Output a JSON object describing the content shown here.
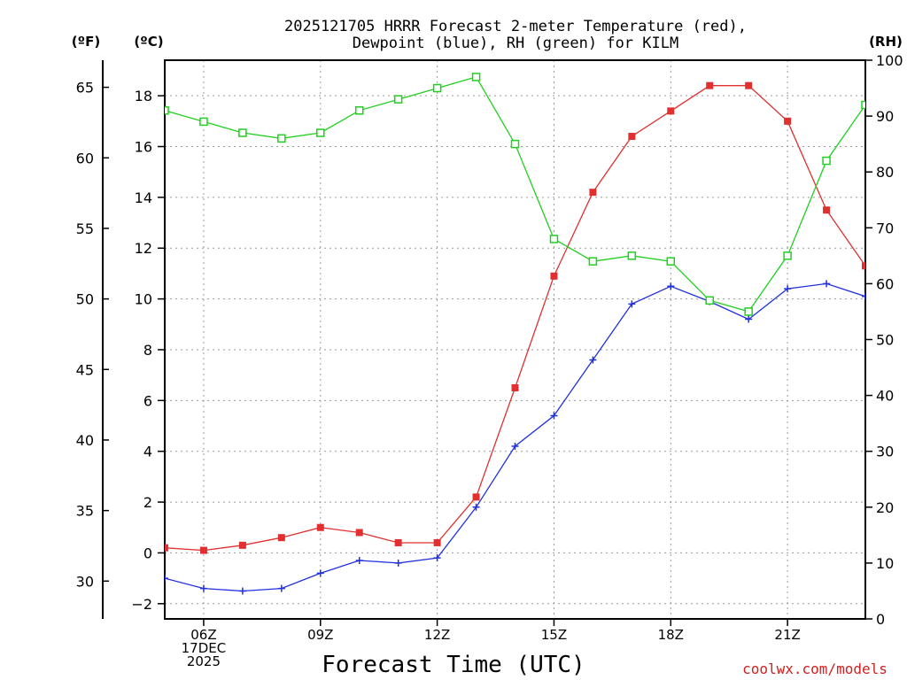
{
  "chart_data": {
    "type": "line",
    "title": [
      "2025121705 HRRR Forecast 2-meter Temperature (red),",
      "Dewpoint (blue), RH (green) for KILM"
    ],
    "xlabel": "Forecast Time (UTC)",
    "credit": "coolwx.com/models",
    "units": {
      "fahrenheit": "(ºF)",
      "celsius": "(ºC)",
      "rh": "(RH)"
    },
    "x_hours": [
      5,
      6,
      7,
      8,
      9,
      10,
      11,
      12,
      13,
      14,
      15,
      16,
      17,
      18,
      19,
      20,
      21,
      22,
      23
    ],
    "x_range": [
      5,
      23
    ],
    "x_ticks": [
      {
        "hour": 6,
        "lines": [
          "06Z",
          "17DEC",
          "2025"
        ]
      },
      {
        "hour": 9,
        "lines": [
          "09Z"
        ]
      },
      {
        "hour": 12,
        "lines": [
          "12Z"
        ]
      },
      {
        "hour": 15,
        "lines": [
          "15Z"
        ]
      },
      {
        "hour": 18,
        "lines": [
          "18Z"
        ]
      },
      {
        "hour": 21,
        "lines": [
          "21Z"
        ]
      }
    ],
    "celsius_axis": {
      "range": [
        -2.6,
        19.4
      ],
      "ticks": [
        "-2",
        "0",
        "2",
        "4",
        "6",
        "8",
        "10",
        "12",
        "14",
        "16",
        "18"
      ]
    },
    "fahrenheit_axis": {
      "ticks": [
        "30",
        "35",
        "40",
        "45",
        "50",
        "55",
        "60",
        "65"
      ]
    },
    "rh_axis": {
      "range": [
        0,
        100
      ],
      "ticks": [
        "0",
        "10",
        "20",
        "30",
        "40",
        "50",
        "60",
        "70",
        "80",
        "90",
        "100"
      ]
    },
    "series": [
      {
        "name": "Temperature",
        "color": "#e03030",
        "marker": "filled-square",
        "axis": "celsius",
        "values": [
          0.2,
          0.1,
          0.3,
          0.6,
          1.0,
          0.8,
          0.4,
          0.4,
          2.2,
          6.5,
          10.9,
          14.2,
          16.4,
          17.4,
          18.4,
          18.4,
          17.0,
          13.5,
          11.3
        ]
      },
      {
        "name": "Dewpoint",
        "color": "#2030e0",
        "marker": "plus",
        "axis": "celsius",
        "values": [
          -1.0,
          -1.4,
          -1.5,
          -1.4,
          -0.8,
          -0.3,
          -0.4,
          -0.2,
          1.8,
          4.2,
          5.4,
          7.6,
          9.8,
          10.5,
          9.9,
          9.2,
          10.4,
          10.6,
          10.1
        ]
      },
      {
        "name": "RH",
        "color": "#20d020",
        "marker": "open-square",
        "axis": "rh",
        "values": [
          91,
          89,
          87,
          86,
          87,
          91,
          93,
          95,
          97,
          85,
          68,
          64,
          65,
          64,
          57,
          55,
          65,
          82,
          92
        ]
      }
    ]
  }
}
